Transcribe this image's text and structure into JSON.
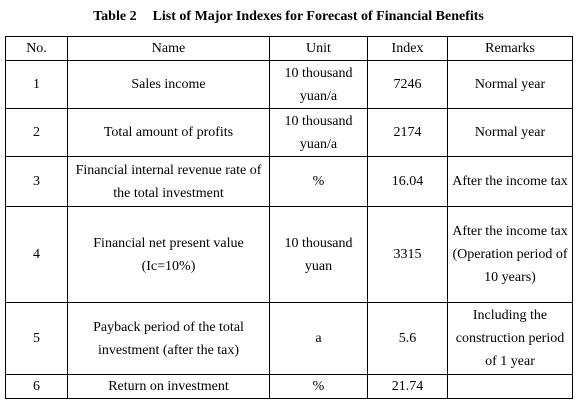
{
  "caption": {
    "label": "Table 2",
    "title": "List of Major Indexes for Forecast of Financial Benefits"
  },
  "table": {
    "headers": [
      "No.",
      "Name",
      "Unit",
      "Index",
      "Remarks"
    ],
    "rows": [
      {
        "no": "1",
        "name": "Sales income",
        "unit": "10 thousand yuan/a",
        "index": "7246",
        "remarks": "Normal year"
      },
      {
        "no": "2",
        "name": "Total amount of profits",
        "unit": "10 thousand yuan/a",
        "index": "2174",
        "remarks": "Normal year"
      },
      {
        "no": "3",
        "name": "Financial internal revenue rate of the total investment",
        "unit": "%",
        "index": "16.04",
        "remarks": "After the income tax"
      },
      {
        "no": "4",
        "name": "Financial net present value (Ic=10%)",
        "unit": "10 thousand yuan",
        "index": "3315",
        "remarks": "After the income tax (Operation period of 10 years)"
      },
      {
        "no": "5",
        "name": "Payback period of the total investment (after the tax)",
        "unit": "a",
        "index": "5.6",
        "remarks": "Including the construction period of 1 year"
      },
      {
        "no": "6",
        "name": "Return on investment",
        "unit": "%",
        "index": "21.74",
        "remarks": ""
      }
    ]
  }
}
